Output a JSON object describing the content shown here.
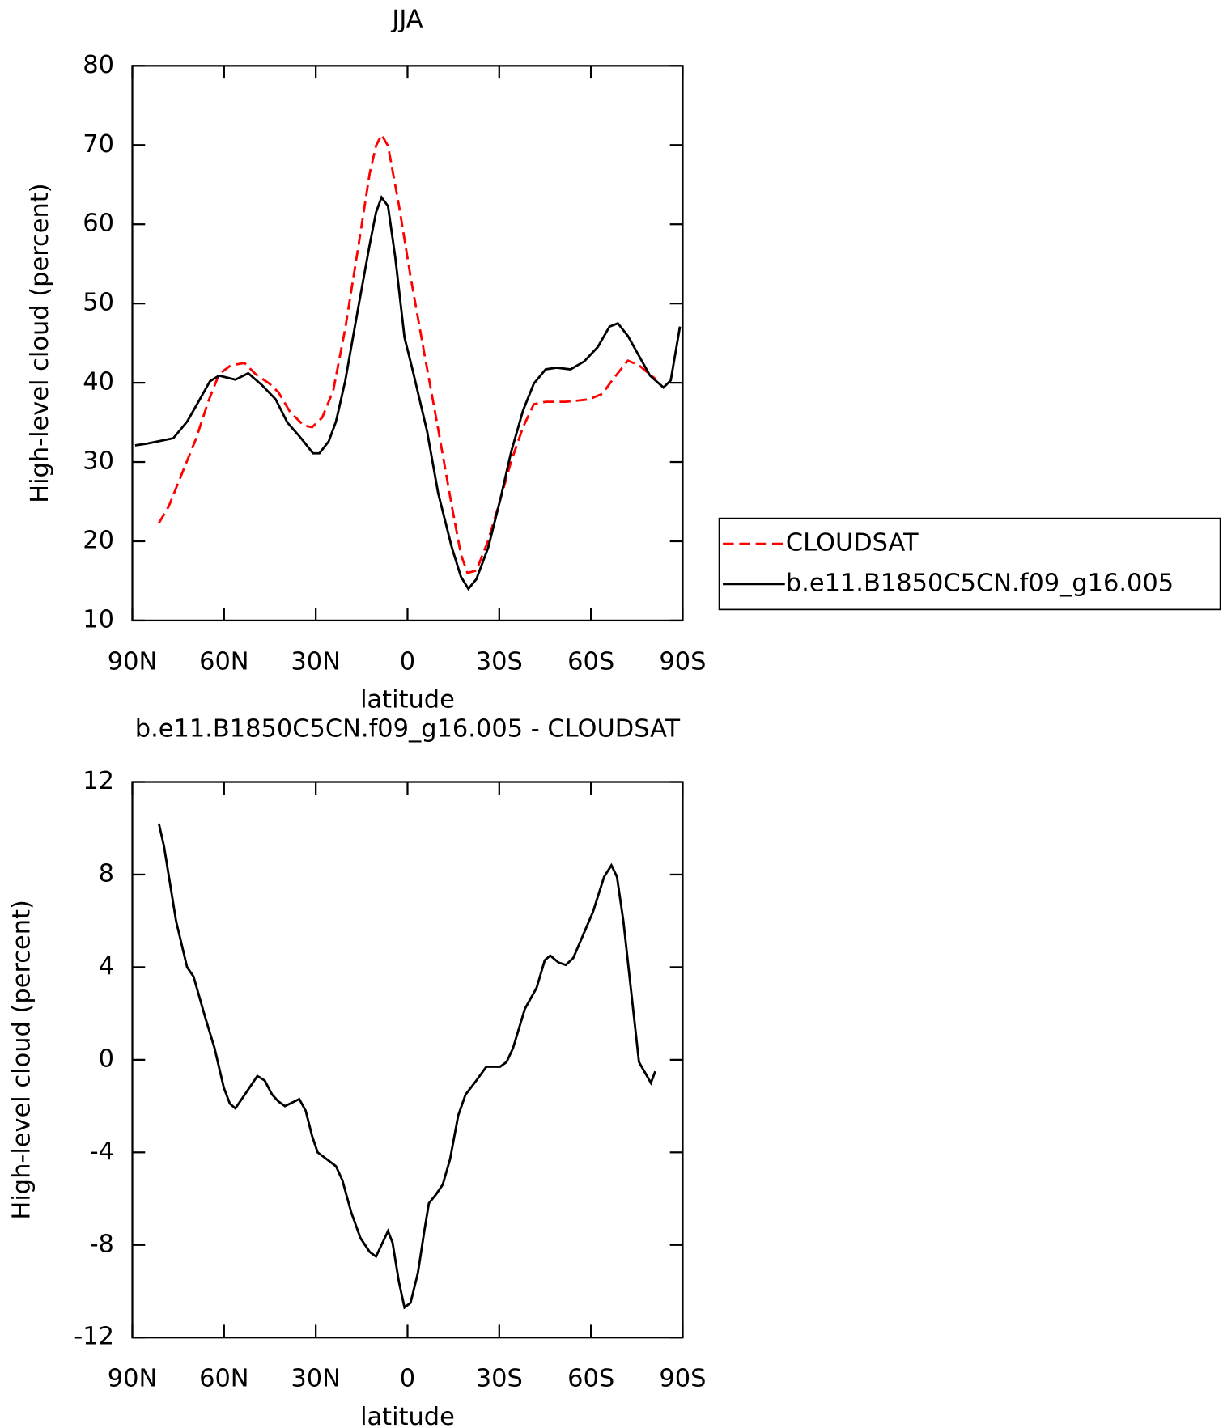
{
  "chart_data": [
    {
      "type": "line",
      "title": "JJA",
      "y_label": "High-level cloud (percent)",
      "x_label": "latitude",
      "xlim": [
        90,
        -90
      ],
      "xticks": [
        {
          "value": 90,
          "label": "90N"
        },
        {
          "value": 60,
          "label": "60N"
        },
        {
          "value": 30,
          "label": "30N"
        },
        0,
        {
          "value": -30,
          "label": "30S"
        },
        {
          "value": -60,
          "label": "60S"
        },
        {
          "value": -90,
          "label": "90S"
        }
      ],
      "ylim": [
        10,
        80
      ],
      "yticks": [
        10,
        20,
        30,
        40,
        50,
        60,
        70,
        80
      ],
      "legend": "right",
      "series": [
        {
          "name": "CLOUDSAT",
          "color": "#ff0000",
          "dash": "dashed",
          "x": [
            81.3,
            78.1,
            73.6,
            69.1,
            65.2,
            61.6,
            57.8,
            53.3,
            49.7,
            45.2,
            42.2,
            38.4,
            33.9,
            31.2,
            27.9,
            24.3,
            20.4,
            16.0,
            12.4,
            10.3,
            8.5,
            6.4,
            2.8,
            -1.0,
            -5.5,
            -10.0,
            -14.5,
            -17.5,
            -19.6,
            -22.5,
            -26.4,
            -30.3,
            -33.9,
            -37.8,
            -41.3,
            -45.2,
            -51.8,
            -59.3,
            -63.7,
            -67.3,
            -72.1,
            -75.7,
            -81.0
          ],
          "values": [
            22.3,
            24.4,
            28.7,
            33.0,
            37.6,
            41.1,
            42.2,
            42.5,
            41.1,
            39.9,
            38.8,
            36.3,
            34.6,
            34.4,
            35.6,
            39.0,
            46.8,
            57.4,
            66.4,
            69.9,
            71.3,
            69.9,
            62.4,
            53.4,
            43.7,
            34.2,
            24.4,
            18.3,
            16.0,
            16.3,
            20.1,
            25.2,
            30.1,
            34.4,
            37.3,
            37.6,
            37.6,
            37.9,
            38.6,
            40.5,
            42.8,
            42.2,
            40.5
          ]
        },
        {
          "name": "b.e11.B1850C5CN.f09_g16.005",
          "color": "#000000",
          "dash": "solid",
          "x": [
            89.1,
            85.5,
            76.6,
            72.1,
            69.1,
            64.6,
            61.6,
            56.3,
            52.1,
            47.6,
            43.1,
            39.3,
            34.8,
            30.9,
            28.8,
            25.8,
            23.4,
            20.4,
            16.3,
            12.4,
            10.3,
            8.5,
            6.4,
            4.0,
            1.0,
            -1.6,
            -6.4,
            -10.0,
            -14.5,
            -17.5,
            -19.9,
            -22.5,
            -26.4,
            -30.3,
            -33.9,
            -37.8,
            -41.3,
            -45.2,
            -48.8,
            -53.3,
            -57.8,
            -62.2,
            -66.1,
            -68.8,
            -72.1,
            -75.7,
            -79.3,
            -83.7,
            -86.1,
            -89.1
          ],
          "values": [
            32.1,
            32.3,
            33.0,
            35.1,
            37.1,
            40.2,
            40.9,
            40.4,
            41.2,
            39.7,
            37.9,
            35.0,
            33.0,
            31.1,
            31.1,
            32.6,
            35.1,
            40.2,
            49.1,
            57.4,
            61.5,
            63.4,
            62.3,
            55.8,
            45.7,
            41.7,
            33.9,
            26.1,
            19.2,
            15.5,
            14.0,
            15.2,
            19.2,
            25.2,
            31.3,
            36.5,
            39.9,
            41.7,
            41.9,
            41.7,
            42.7,
            44.5,
            47.1,
            47.5,
            45.9,
            43.4,
            40.9,
            39.4,
            40.3,
            47.1
          ]
        }
      ]
    },
    {
      "type": "line",
      "title": "b.e11.B1850C5CN.f09_g16.005 - CLOUDSAT",
      "y_label": "High-level cloud (percent)",
      "x_label": "latitude",
      "xlim": [
        90,
        -90
      ],
      "xticks": [
        {
          "value": 90,
          "label": "90N"
        },
        {
          "value": 60,
          "label": "60N"
        },
        {
          "value": 30,
          "label": "30N"
        },
        0,
        {
          "value": -30,
          "label": "30S"
        },
        {
          "value": -60,
          "label": "60S"
        },
        {
          "value": -90,
          "label": "90S"
        }
      ],
      "ylim": [
        -12,
        12
      ],
      "yticks": [
        -12,
        -8,
        -4,
        0,
        4,
        8,
        12
      ],
      "series": [
        {
          "color": "#000000",
          "dash": "solid",
          "x": [
            81.3,
            79.6,
            75.7,
            72.1,
            70.0,
            66.1,
            63.1,
            60.1,
            58.1,
            56.3,
            52.7,
            49.1,
            46.7,
            44.3,
            42.2,
            40.1,
            35.4,
            33.3,
            31.2,
            29.4,
            26.4,
            23.4,
            21.3,
            18.4,
            15.4,
            12.4,
            10.3,
            6.4,
            4.9,
            2.8,
            1.0,
            -1.0,
            -3.4,
            -5.5,
            -7.0,
            -9.4,
            -11.5,
            -13.9,
            -16.6,
            -19.0,
            -22.5,
            -25.8,
            -27.9,
            -30.3,
            -32.4,
            -34.5,
            -38.4,
            -42.2,
            -44.9,
            -46.7,
            -49.4,
            -51.8,
            -54.2,
            -57.8,
            -60.7,
            -64.3,
            -66.7,
            -68.5,
            -70.6,
            -75.7,
            -79.6,
            -81.0
          ],
          "values": [
            10.2,
            9.2,
            6.0,
            4.0,
            3.6,
            1.8,
            0.5,
            -1.2,
            -1.9,
            -2.1,
            -1.4,
            -0.7,
            -0.9,
            -1.5,
            -1.8,
            -2.0,
            -1.7,
            -2.2,
            -3.3,
            -4.0,
            -4.3,
            -4.6,
            -5.2,
            -6.6,
            -7.7,
            -8.3,
            -8.5,
            -7.4,
            -7.9,
            -9.6,
            -10.7,
            -10.5,
            -9.2,
            -7.4,
            -6.2,
            -5.8,
            -5.4,
            -4.3,
            -2.4,
            -1.5,
            -0.9,
            -0.3,
            -0.3,
            -0.3,
            -0.1,
            0.5,
            2.2,
            3.1,
            4.3,
            4.5,
            4.2,
            4.1,
            4.4,
            5.5,
            6.4,
            7.9,
            8.4,
            7.9,
            6.0,
            -0.1,
            -1.0,
            -0.5
          ]
        }
      ]
    }
  ]
}
